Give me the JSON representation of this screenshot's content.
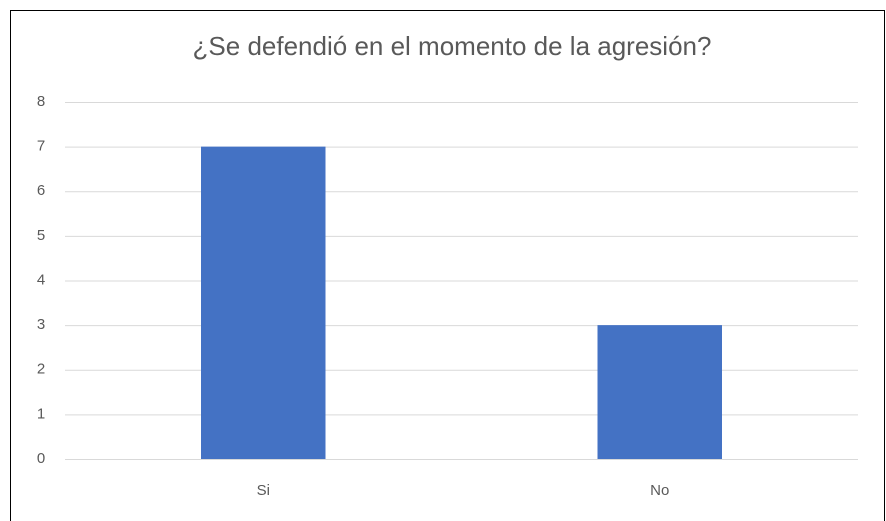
{
  "chart_data": {
    "type": "bar",
    "title": "¿Se defendió  en el momento de la agresión?",
    "categories": [
      "Si",
      "No"
    ],
    "values": [
      7,
      3
    ],
    "color": "#4472c4",
    "ylim": [
      0,
      8
    ],
    "yticks": [
      0,
      1,
      2,
      3,
      4,
      5,
      6,
      7,
      8
    ],
    "grid": true
  }
}
